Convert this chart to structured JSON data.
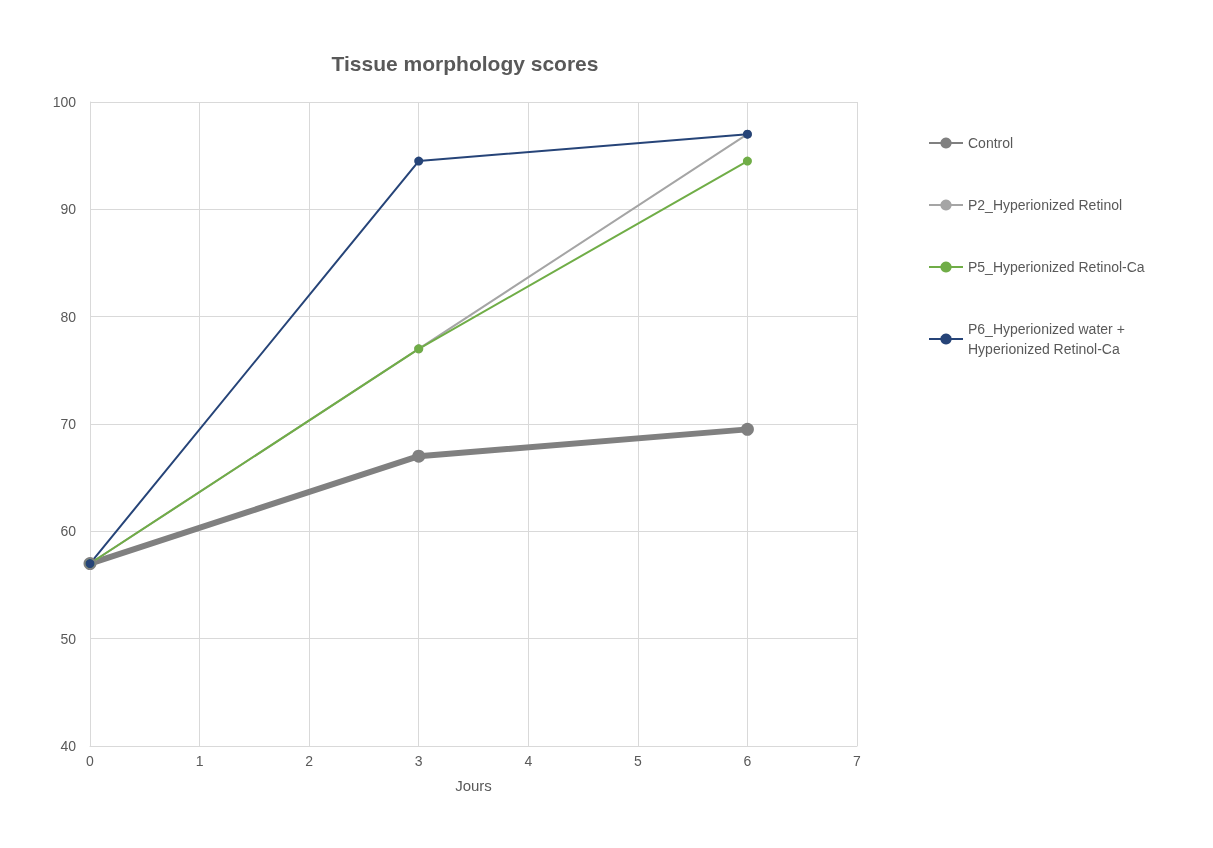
{
  "chart_data": {
    "type": "line",
    "title": "Tissue morphology scores",
    "xlabel": "Jours",
    "x": [
      0,
      3,
      6
    ],
    "xlim": [
      0,
      7
    ],
    "xticks": [
      0,
      1,
      2,
      3,
      4,
      5,
      6,
      7
    ],
    "ylim": [
      40,
      100
    ],
    "yticks": [
      40,
      50,
      60,
      70,
      80,
      90,
      100
    ],
    "grid": true,
    "legend": "right",
    "marker": "circle",
    "line_style": "solid",
    "series": [
      {
        "name": "Control",
        "color": "#808080",
        "values": [
          57,
          67,
          69.5
        ]
      },
      {
        "name": "P2_Hyperionized Retinol",
        "color": "#a5a5a5",
        "values": [
          57,
          77,
          97
        ]
      },
      {
        "name": "P5_Hyperionized Retinol-Ca",
        "color": "#70ad47",
        "values": [
          57,
          77,
          94.5
        ]
      },
      {
        "name": "P6_Hyperionized water + Hyperionized Retinol-Ca",
        "color": "#264478",
        "values": [
          57,
          94.5,
          97
        ]
      }
    ]
  }
}
